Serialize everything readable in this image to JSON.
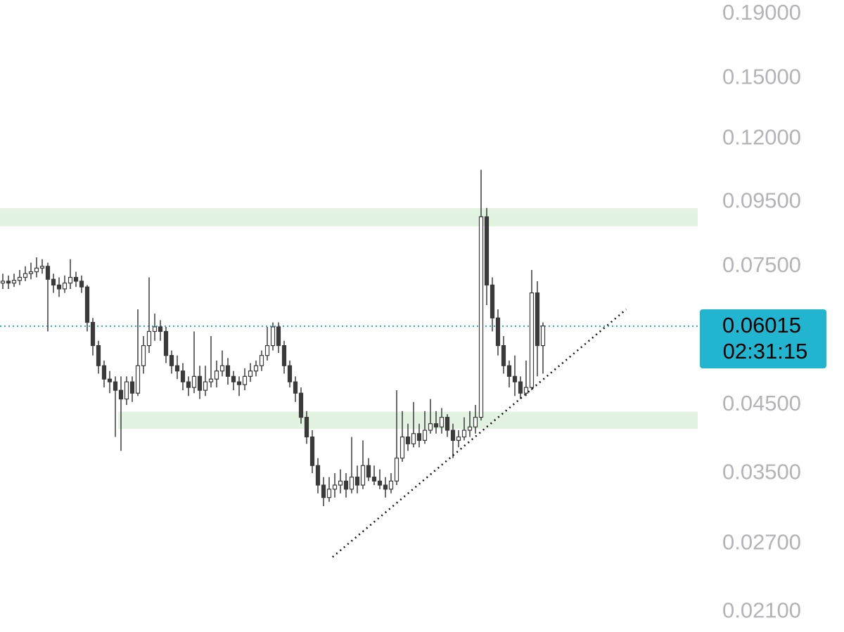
{
  "chart_data": {
    "type": "candlestick",
    "log_scale": true,
    "ylim": [
      0.0195,
      0.2
    ],
    "yticks": [
      {
        "value": 0.19,
        "label": "0.19000"
      },
      {
        "value": 0.15,
        "label": "0.15000"
      },
      {
        "value": 0.12,
        "label": "0.12000"
      },
      {
        "value": 0.095,
        "label": "0.09500"
      },
      {
        "value": 0.075,
        "label": "0.07500"
      },
      {
        "value": 0.045,
        "label": "0.04500"
      },
      {
        "value": 0.035,
        "label": "0.03500"
      },
      {
        "value": 0.027,
        "label": "0.02700"
      },
      {
        "value": 0.021,
        "label": "0.02100"
      }
    ],
    "color": "#3a3a3a",
    "last_price": 0.06015,
    "countdown": "02:31:15",
    "last_price_color": "#22b5cf",
    "zones": [
      {
        "x_start": 0,
        "low": 0.0869,
        "high": 0.0929,
        "color": "#e3f3e1"
      },
      {
        "x_start": 21,
        "low": 0.0412,
        "high": 0.0439,
        "color": "#e3f3e1"
      }
    ],
    "trendline": {
      "x": [
        58.6,
        110.8
      ],
      "y": [
        0.0257,
        0.064
      ],
      "color": "#111111"
    },
    "candles": [
      [
        0.0705,
        0.073,
        0.069,
        0.071
      ],
      [
        0.071,
        0.0725,
        0.069,
        0.0705
      ],
      [
        0.0705,
        0.073,
        0.0695,
        0.0712
      ],
      [
        0.0712,
        0.074,
        0.07,
        0.072
      ],
      [
        0.072,
        0.075,
        0.071,
        0.073
      ],
      [
        0.073,
        0.076,
        0.0715,
        0.0735
      ],
      [
        0.0735,
        0.0775,
        0.072,
        0.0745
      ],
      [
        0.0745,
        0.077,
        0.073,
        0.075
      ],
      [
        0.075,
        0.076,
        0.059,
        0.0715
      ],
      [
        0.0715,
        0.073,
        0.068,
        0.07
      ],
      [
        0.07,
        0.072,
        0.067,
        0.069
      ],
      [
        0.069,
        0.0725,
        0.068,
        0.0705
      ],
      [
        0.0705,
        0.077,
        0.069,
        0.072
      ],
      [
        0.072,
        0.0735,
        0.0695,
        0.071
      ],
      [
        0.071,
        0.0725,
        0.068,
        0.0695
      ],
      [
        0.0695,
        0.07,
        0.059,
        0.061
      ],
      [
        0.061,
        0.062,
        0.054,
        0.056
      ],
      [
        0.056,
        0.057,
        0.0505,
        0.052
      ],
      [
        0.052,
        0.053,
        0.048,
        0.0495
      ],
      [
        0.0495,
        0.051,
        0.047,
        0.049
      ],
      [
        0.049,
        0.05,
        0.04,
        0.0475
      ],
      [
        0.0475,
        0.05,
        0.038,
        0.046
      ],
      [
        0.046,
        0.05,
        0.045,
        0.049
      ],
      [
        0.049,
        0.05,
        0.0455,
        0.047
      ],
      [
        0.047,
        0.064,
        0.0465,
        0.052
      ],
      [
        0.052,
        0.058,
        0.0505,
        0.056
      ],
      [
        0.056,
        0.072,
        0.0545,
        0.059
      ],
      [
        0.059,
        0.063,
        0.057,
        0.06
      ],
      [
        0.06,
        0.0615,
        0.057,
        0.059
      ],
      [
        0.059,
        0.06,
        0.0525,
        0.054
      ],
      [
        0.054,
        0.055,
        0.0505,
        0.052
      ],
      [
        0.052,
        0.054,
        0.0495,
        0.051
      ],
      [
        0.051,
        0.0525,
        0.0475,
        0.049
      ],
      [
        0.049,
        0.05,
        0.0465,
        0.048
      ],
      [
        0.048,
        0.059,
        0.047,
        0.05
      ],
      [
        0.05,
        0.052,
        0.046,
        0.0475
      ],
      [
        0.0475,
        0.052,
        0.0465,
        0.049
      ],
      [
        0.049,
        0.058,
        0.048,
        0.0495
      ],
      [
        0.0495,
        0.053,
        0.048,
        0.051
      ],
      [
        0.051,
        0.055,
        0.05,
        0.052
      ],
      [
        0.052,
        0.0535,
        0.0485,
        0.05
      ],
      [
        0.05,
        0.051,
        0.0475,
        0.049
      ],
      [
        0.049,
        0.05,
        0.0465,
        0.0485
      ],
      [
        0.0485,
        0.0515,
        0.0475,
        0.05
      ],
      [
        0.05,
        0.0525,
        0.049,
        0.051
      ],
      [
        0.051,
        0.053,
        0.05,
        0.052
      ],
      [
        0.052,
        0.055,
        0.051,
        0.054
      ],
      [
        0.054,
        0.06,
        0.053,
        0.056
      ],
      [
        0.056,
        0.061,
        0.055,
        0.06
      ],
      [
        0.06,
        0.061,
        0.0545,
        0.056
      ],
      [
        0.056,
        0.057,
        0.0505,
        0.052
      ],
      [
        0.052,
        0.053,
        0.048,
        0.049
      ],
      [
        0.049,
        0.05,
        0.0455,
        0.047
      ],
      [
        0.047,
        0.048,
        0.042,
        0.043
      ],
      [
        0.043,
        0.044,
        0.039,
        0.04
      ],
      [
        0.04,
        0.041,
        0.035,
        0.036
      ],
      [
        0.036,
        0.037,
        0.0325,
        0.0335
      ],
      [
        0.0335,
        0.0345,
        0.031,
        0.032
      ],
      [
        0.032,
        0.0345,
        0.0315,
        0.033
      ],
      [
        0.033,
        0.035,
        0.032,
        0.0335
      ],
      [
        0.0335,
        0.0355,
        0.0325,
        0.034
      ],
      [
        0.034,
        0.035,
        0.032,
        0.033
      ],
      [
        0.033,
        0.04,
        0.0325,
        0.0345
      ],
      [
        0.0345,
        0.036,
        0.0325,
        0.0335
      ],
      [
        0.0335,
        0.0395,
        0.033,
        0.036
      ],
      [
        0.036,
        0.037,
        0.034,
        0.0345
      ],
      [
        0.0345,
        0.036,
        0.0335,
        0.034
      ],
      [
        0.034,
        0.0355,
        0.033,
        0.0335
      ],
      [
        0.0335,
        0.0345,
        0.032,
        0.033
      ],
      [
        0.033,
        0.035,
        0.0325,
        0.034
      ],
      [
        0.034,
        0.0475,
        0.0335,
        0.037
      ],
      [
        0.037,
        0.044,
        0.0365,
        0.04
      ],
      [
        0.04,
        0.042,
        0.038,
        0.039
      ],
      [
        0.039,
        0.0455,
        0.0385,
        0.0405
      ],
      [
        0.0405,
        0.042,
        0.0385,
        0.0395
      ],
      [
        0.0395,
        0.044,
        0.039,
        0.041
      ],
      [
        0.041,
        0.046,
        0.0405,
        0.042
      ],
      [
        0.042,
        0.044,
        0.0405,
        0.0415
      ],
      [
        0.0415,
        0.0445,
        0.0405,
        0.043
      ],
      [
        0.043,
        0.0435,
        0.04,
        0.041
      ],
      [
        0.041,
        0.042,
        0.037,
        0.0395
      ],
      [
        0.0395,
        0.041,
        0.0385,
        0.04
      ],
      [
        0.04,
        0.043,
        0.0395,
        0.041
      ],
      [
        0.041,
        0.044,
        0.04,
        0.0415
      ],
      [
        0.0415,
        0.045,
        0.0405,
        0.043
      ],
      [
        0.043,
        0.107,
        0.0425,
        0.09
      ],
      [
        0.09,
        0.093,
        0.065,
        0.07
      ],
      [
        0.07,
        0.072,
        0.059,
        0.062
      ],
      [
        0.062,
        0.064,
        0.054,
        0.056
      ],
      [
        0.056,
        0.058,
        0.0505,
        0.052
      ],
      [
        0.052,
        0.053,
        0.048,
        0.05
      ],
      [
        0.05,
        0.054,
        0.0465,
        0.049
      ],
      [
        0.049,
        0.05,
        0.046,
        0.047
      ],
      [
        0.047,
        0.053,
        0.0465,
        0.048
      ],
      [
        0.048,
        0.074,
        0.0475,
        0.068
      ],
      [
        0.068,
        0.071,
        0.05,
        0.056
      ],
      [
        0.056,
        0.061,
        0.0505,
        0.0602
      ]
    ]
  }
}
